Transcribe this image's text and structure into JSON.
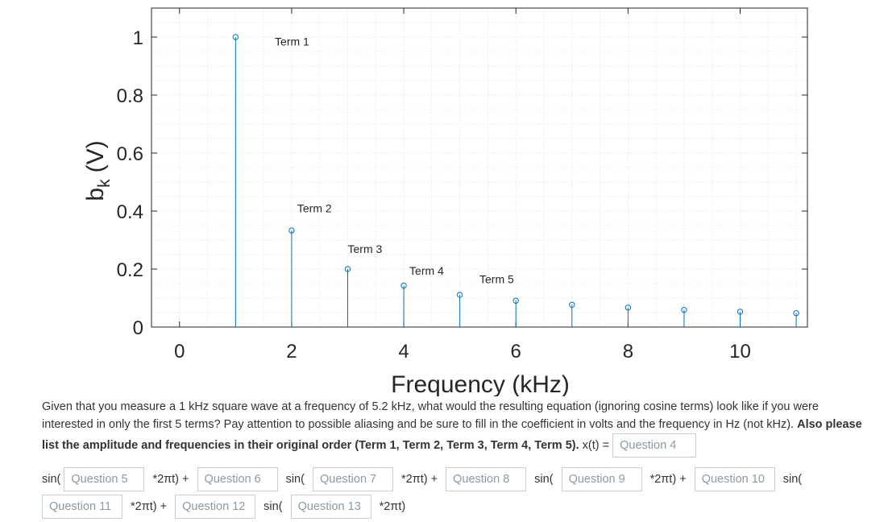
{
  "chart_data": {
    "type": "stem",
    "xlabel": "Frequency (kHz)",
    "ylabel": "b",
    "ylabel_subscript": "k",
    "ylabel_unit": "(V)",
    "xlim": [
      -0.5,
      11.2
    ],
    "ylim": [
      0,
      1.1
    ],
    "xticks": [
      0,
      2,
      4,
      6,
      8,
      10
    ],
    "yticks": [
      0,
      0.2,
      0.4,
      0.6,
      0.8,
      1
    ],
    "ytick_labels": [
      "0",
      "0.2",
      "0.4",
      "0.6",
      "0.8",
      "1"
    ],
    "grid": true,
    "color": "#0072BD",
    "x": [
      1,
      2,
      3,
      4,
      5,
      6,
      7,
      8,
      9,
      10,
      11
    ],
    "values": [
      1.0,
      0.333,
      0.2,
      0.143,
      0.111,
      0.091,
      0.077,
      0.067,
      0.059,
      0.053,
      0.048
    ],
    "annotations": [
      {
        "text": "Term 1",
        "x": 1.7,
        "y": 0.985
      },
      {
        "text": "Term 2",
        "x": 2.1,
        "y": 0.41
      },
      {
        "text": "Term 3",
        "x": 3.0,
        "y": 0.27
      },
      {
        "text": "Term 4",
        "x": 4.1,
        "y": 0.195
      },
      {
        "text": "Term 5",
        "x": 5.35,
        "y": 0.165
      }
    ]
  },
  "question": {
    "text": "Given that you measure a 1 kHz square wave at a frequency of 5.2 kHz, what would the resulting equation (ignoring cosine terms) look like if you were interested in only the first 5 terms? Pay attention to possible aliasing and be sure to fill in the coefficient in volts and the frequency in Hz (not kHz). ",
    "bold_text": "Also please list the amplitude and frequencies in their original order (Term 1, Term 2, Term 3, Term 4, Term 5).",
    "lead": " x(t) = ",
    "sin_label": "sin(",
    "twopi_label": "*2πt) +",
    "twopi_last": "*2πt)",
    "fields": [
      "Question 4",
      "Question 5",
      "Question 6",
      "Question 7",
      "Question 8",
      "Question 9",
      "Question 10",
      "Question 11",
      "Question 12",
      "Question 13"
    ]
  }
}
